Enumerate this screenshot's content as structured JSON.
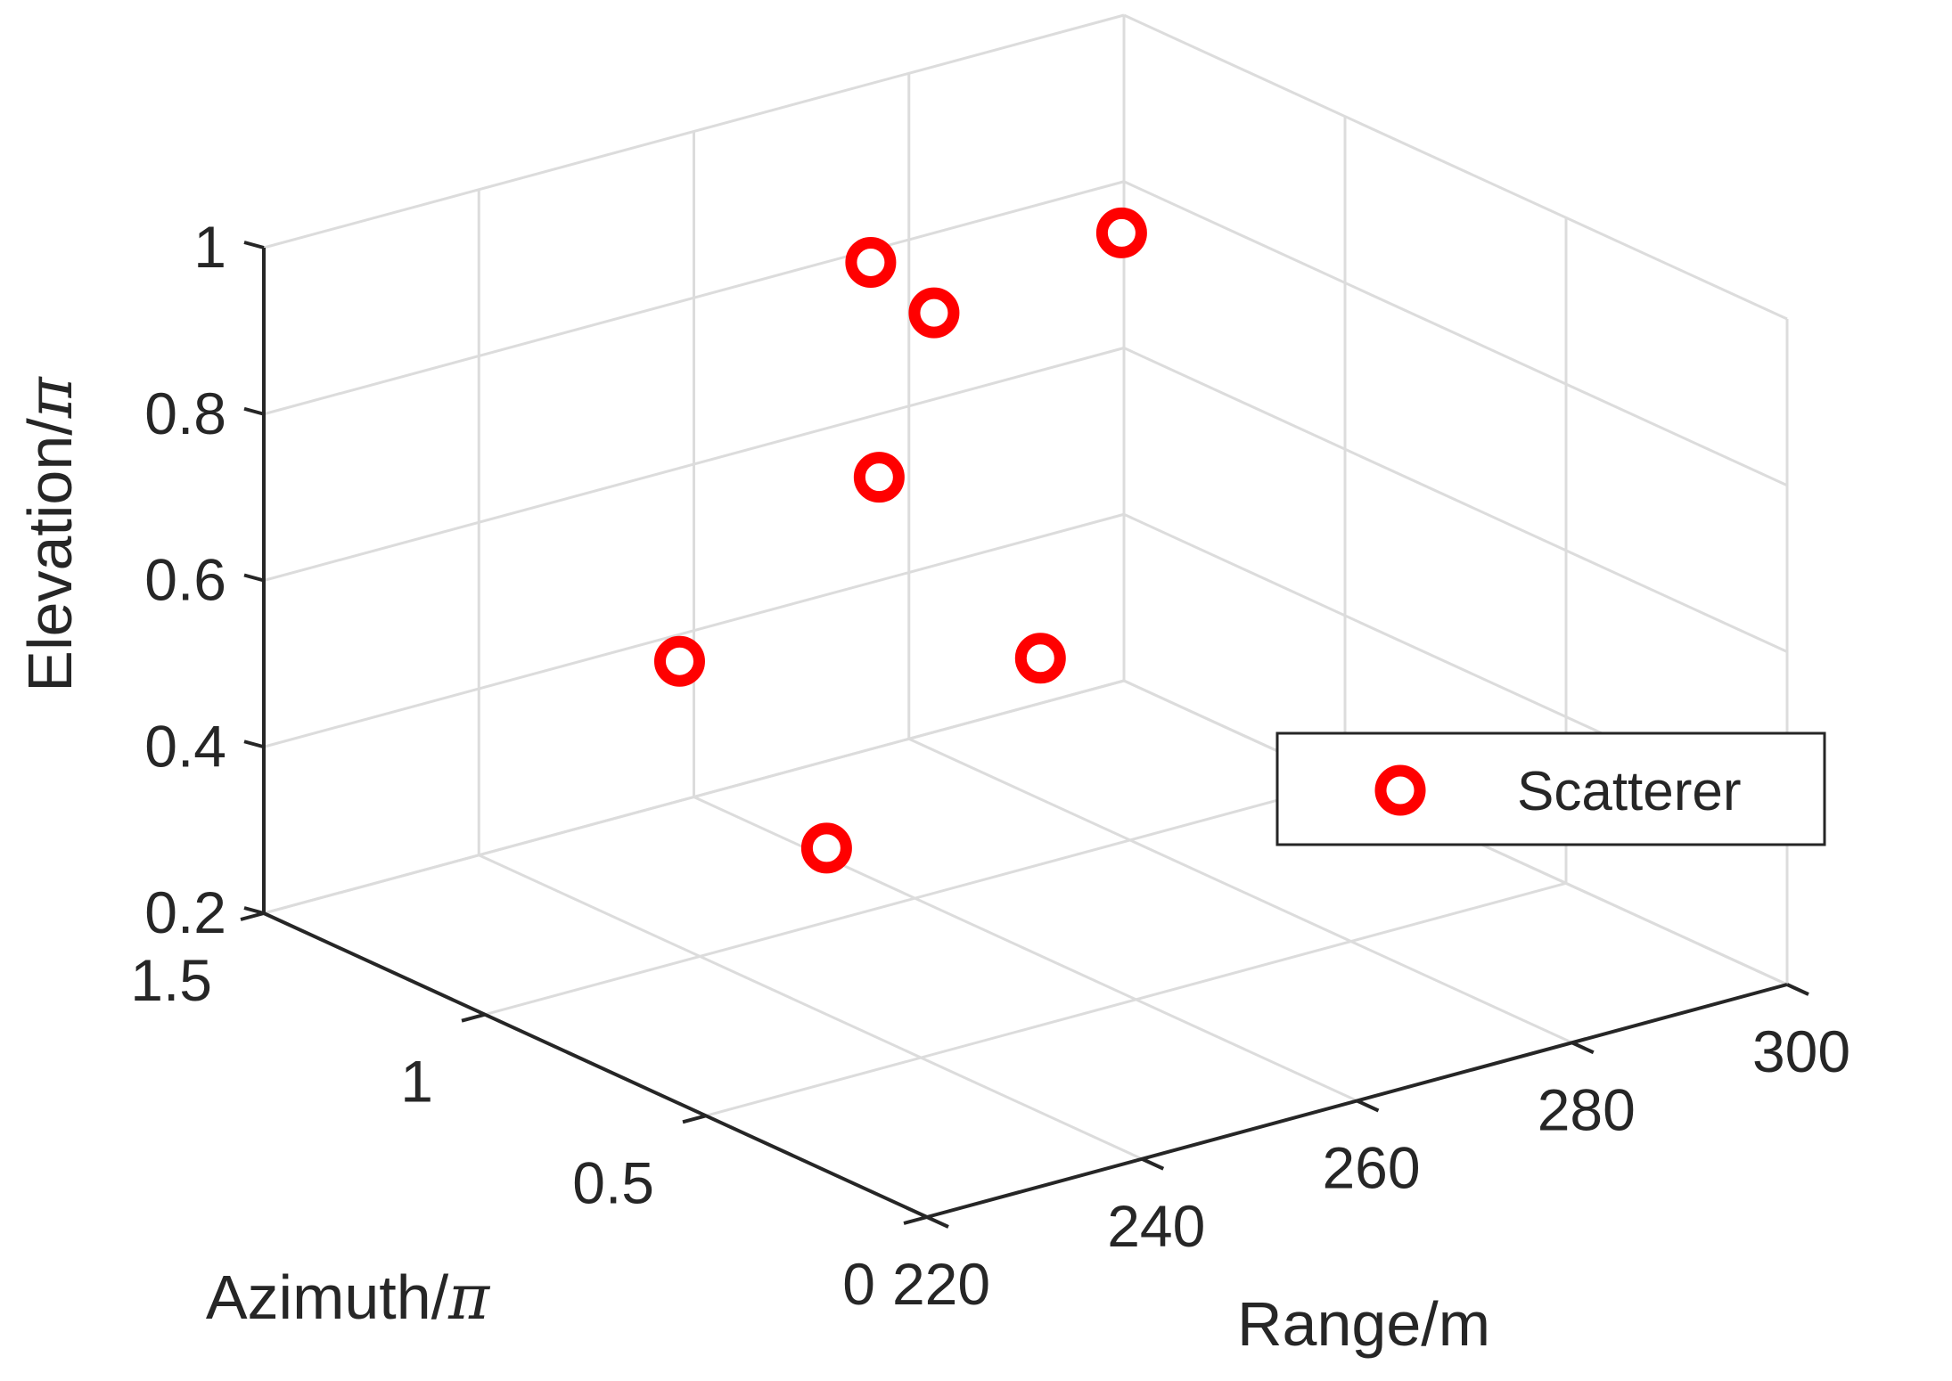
{
  "chart_data": {
    "type": "scatter3d",
    "series": [
      {
        "name": "Scatterer",
        "marker": "circle",
        "color": "#ff0000",
        "points": [
          {
            "range": 223,
            "azimuth": 0.3,
            "elevation": 0.56
          },
          {
            "range": 234,
            "azimuth": 0.9,
            "elevation": 0.6
          },
          {
            "range": 247,
            "azimuth": 0.4,
            "elevation": 0.68
          },
          {
            "range": 232,
            "azimuth": 0.4,
            "elevation": 0.95
          },
          {
            "range": 260,
            "azimuth": 1.1,
            "elevation": 0.94
          },
          {
            "range": 270,
            "azimuth": 1.2,
            "elevation": 0.82
          },
          {
            "range": 271,
            "azimuth": 0.8,
            "elevation": 1.01
          }
        ]
      }
    ],
    "axes": {
      "range": {
        "label": "Range/m",
        "lim": [
          220,
          300
        ],
        "ticks": [
          220,
          240,
          260,
          280,
          300
        ],
        "tick_labels": [
          "220",
          "240",
          "260",
          "280",
          "300"
        ]
      },
      "azimuth": {
        "label_text": "Azimuth/",
        "label_symbol": "π",
        "lim": [
          0,
          1.5
        ],
        "ticks": [
          0,
          0.5,
          1,
          1.5
        ],
        "tick_labels": [
          "0",
          "0.5",
          "1",
          "1.5"
        ]
      },
      "elevation": {
        "label_text": "Elevation/",
        "label_symbol": "π",
        "lim": [
          0.2,
          1
        ],
        "ticks": [
          0.2,
          0.4,
          0.6,
          0.8,
          1
        ],
        "tick_labels": [
          "0.2",
          "0.4",
          "0.6",
          "0.8",
          "1"
        ]
      }
    },
    "grid": true,
    "legend": {
      "placement": "right",
      "entries": [
        "Scatterer"
      ]
    },
    "colors": {
      "axis": "#262626",
      "grid": "#dcdcdc",
      "marker": "#ff0000",
      "background": "#ffffff"
    }
  }
}
